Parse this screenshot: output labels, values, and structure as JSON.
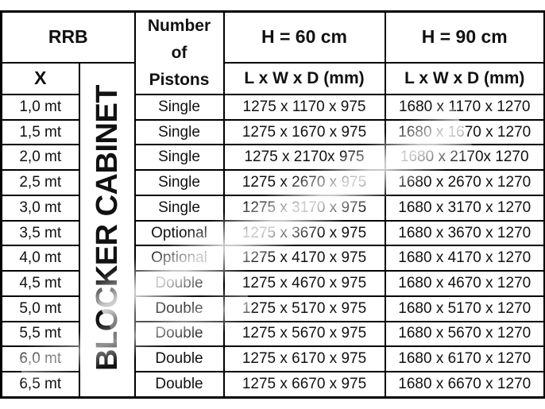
{
  "table": {
    "header": {
      "rrb": "RRB",
      "x": "X",
      "cabinet": "BLOCKER CABINET",
      "pistons_lines": [
        "Number",
        "of",
        "Pistons"
      ],
      "h60": "H = 60 cm",
      "h90": "H = 90 cm",
      "dims60": "L x W x D (mm)",
      "dims90": "L x W x D (mm)"
    },
    "rows": [
      {
        "x": "1,0 mt",
        "pistons": "Single",
        "h60": "1275 x 1170 x 975",
        "h90": "1680 x 1170 x 1270"
      },
      {
        "x": "1,5 mt",
        "pistons": "Single",
        "h60": "1275 x 1670 x 975",
        "h90": "1680 x 1670 x 1270"
      },
      {
        "x": "2,0 mt",
        "pistons": "Single",
        "h60": "1275 x 2170x 975",
        "h90": "1680 x 2170x 1270"
      },
      {
        "x": "2,5 mt",
        "pistons": "Single",
        "h60": "1275 x 2670 x 975",
        "h90": "1680 x 2670 x 1270"
      },
      {
        "x": "3,0 mt",
        "pistons": "Single",
        "h60": "1275 x 3170 x 975",
        "h90": "1680 x 3170 x 1270"
      },
      {
        "x": "3,5 mt",
        "pistons": "Optional",
        "h60": "1275 x 3670 x 975",
        "h90": "1680 x 3670 x 1270"
      },
      {
        "x": "4,0 mt",
        "pistons": "Optional",
        "h60": "1275 x 4170 x 975",
        "h90": "1680 x 4170 x 1270"
      },
      {
        "x": "4,5 mt",
        "pistons": "Double",
        "h60": "1275 x 4670 x 975",
        "h90": "1680 x 4670 x 1270"
      },
      {
        "x": "5,0 mt",
        "pistons": "Double",
        "h60": "1275 x 5170 x 975",
        "h90": "1680 x 5170 x 1270"
      },
      {
        "x": "5,5 mt",
        "pistons": "Double",
        "h60": "1275 x 5670 x 975",
        "h90": "1680 x 5670 x 1270"
      },
      {
        "x": "6,0 mt",
        "pistons": "Double",
        "h60": "1275 x 6170 x 975",
        "h90": "1680 x 6170 x 1270"
      },
      {
        "x": "6,5 mt",
        "pistons": "Double",
        "h60": "1275 x 6670 x 975",
        "h90": "1680 x 6670 x 1270"
      }
    ]
  },
  "colors": {
    "border": "#000000",
    "text": "#111111",
    "background": "#ffffff"
  }
}
